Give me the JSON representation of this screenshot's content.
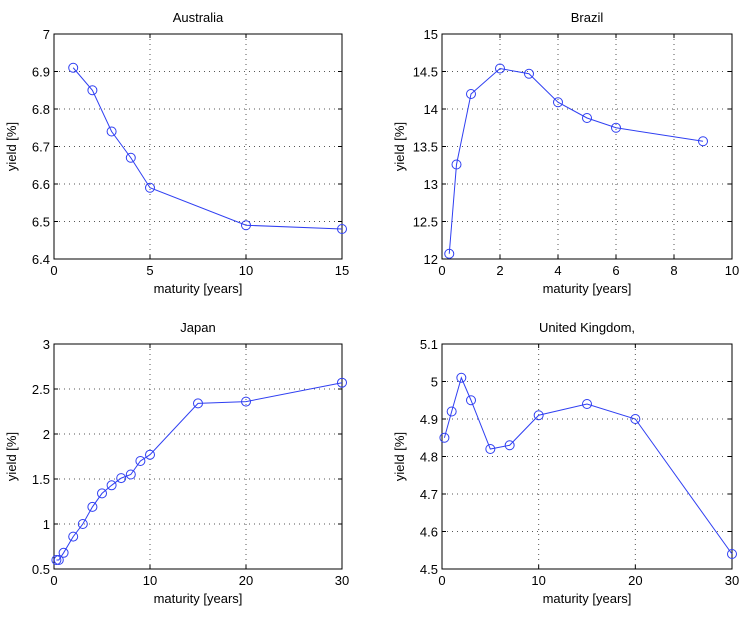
{
  "figure": {
    "line_color": "#2f3ff2",
    "axis_color": "#000000",
    "grid_color": "#555555"
  },
  "chart_data": [
    {
      "type": "line",
      "title": "Australia",
      "xlabel": "maturity [years]",
      "ylabel": "yield [%]",
      "xlim": [
        0,
        15
      ],
      "ylim": [
        6.4,
        7
      ],
      "xticks": [
        0,
        5,
        10,
        15
      ],
      "yticks": [
        6.4,
        6.5,
        6.6,
        6.7,
        6.8,
        6.9,
        7
      ],
      "xtick_labels": [
        "0",
        "5",
        "10",
        "15"
      ],
      "ytick_labels": [
        "6.4",
        "6.5",
        "6.6",
        "6.7",
        "6.8",
        "6.9",
        "7"
      ],
      "grid": true,
      "series": [
        {
          "name": "Australia",
          "x": [
            1,
            2,
            3,
            4,
            5,
            10,
            15
          ],
          "y": [
            6.91,
            6.85,
            6.74,
            6.67,
            6.59,
            6.49,
            6.48
          ]
        }
      ]
    },
    {
      "type": "line",
      "title": "Brazil",
      "xlabel": "maturity [years]",
      "ylabel": "yield [%]",
      "xlim": [
        0,
        10
      ],
      "ylim": [
        12,
        15
      ],
      "xticks": [
        0,
        2,
        4,
        6,
        8,
        10
      ],
      "yticks": [
        12,
        12.5,
        13,
        13.5,
        14,
        14.5,
        15
      ],
      "xtick_labels": [
        "0",
        "2",
        "4",
        "6",
        "8",
        "10"
      ],
      "ytick_labels": [
        "12",
        "12.5",
        "13",
        "13.5",
        "14",
        "14.5",
        "15"
      ],
      "grid": true,
      "series": [
        {
          "name": "Brazil",
          "x": [
            0.25,
            0.5,
            1,
            2,
            3,
            4,
            5,
            6,
            9
          ],
          "y": [
            12.07,
            13.26,
            14.2,
            14.54,
            14.47,
            14.09,
            13.88,
            13.75,
            13.57
          ]
        }
      ]
    },
    {
      "type": "line",
      "title": "Japan",
      "xlabel": "maturity [years]",
      "ylabel": "yield [%]",
      "xlim": [
        0,
        30
      ],
      "ylim": [
        0.5,
        3
      ],
      "xticks": [
        0,
        10,
        20,
        30
      ],
      "yticks": [
        0.5,
        1,
        1.5,
        2,
        2.5,
        3
      ],
      "xtick_labels": [
        "0",
        "10",
        "20",
        "30"
      ],
      "ytick_labels": [
        "0.5",
        "1",
        "1.5",
        "2",
        "2.5",
        "3"
      ],
      "grid": true,
      "series": [
        {
          "name": "Japan",
          "x": [
            0.25,
            0.5,
            1,
            2,
            3,
            4,
            5,
            6,
            7,
            8,
            9,
            10,
            15,
            20,
            30
          ],
          "y": [
            0.6,
            0.6,
            0.68,
            0.86,
            1.0,
            1.19,
            1.34,
            1.43,
            1.51,
            1.55,
            1.7,
            1.77,
            2.34,
            2.36,
            2.57
          ]
        }
      ]
    },
    {
      "type": "line",
      "title": "United Kingdom,",
      "xlabel": "maturity [years]",
      "ylabel": "yield [%]",
      "xlim": [
        0,
        30
      ],
      "ylim": [
        4.5,
        5.1
      ],
      "xticks": [
        0,
        10,
        20,
        30
      ],
      "yticks": [
        4.5,
        4.6,
        4.7,
        4.8,
        4.9,
        5,
        5.1
      ],
      "xtick_labels": [
        "0",
        "10",
        "20",
        "30"
      ],
      "ytick_labels": [
        "4.5",
        "4.6",
        "4.7",
        "4.8",
        "4.9",
        "5",
        "5.1"
      ],
      "grid": true,
      "series": [
        {
          "name": "United Kingdom",
          "x": [
            0.25,
            1,
            2,
            3,
            5,
            7,
            10,
            15,
            20,
            30
          ],
          "y": [
            4.85,
            4.92,
            5.01,
            4.95,
            4.82,
            4.83,
            4.91,
            4.94,
            4.9,
            4.54
          ]
        }
      ]
    }
  ]
}
